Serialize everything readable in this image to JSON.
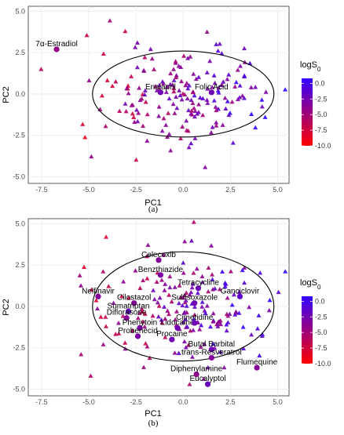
{
  "chart_data": [
    {
      "type": "scatter",
      "panel_label": "(a)",
      "xlabel": "PC1",
      "ylabel": "PC2",
      "xlim": [
        -8.2,
        5.6
      ],
      "ylim": [
        -5.4,
        5.3
      ],
      "x_ticks": [
        -7.5,
        -5.0,
        -2.5,
        0.0,
        2.5,
        5.0
      ],
      "x_tick_labels": [
        "-7.5",
        "-5.0",
        "-2.5",
        "0.0",
        "2.5",
        "5.0"
      ],
      "y_ticks": [
        -5.0,
        -2.5,
        0.0,
        2.5,
        5.0
      ],
      "y_tick_labels": [
        "-5.0",
        "-2.5",
        "0.0",
        "2.5",
        "5.0"
      ],
      "grid": true,
      "legend": {
        "title": "logS",
        "title_sub": "0",
        "ticks": [
          0.0,
          -2.5,
          -5.0,
          -7.5,
          -10.0
        ],
        "tick_labels": [
          "0.0",
          "-2.5",
          "-5.0",
          "-7.5",
          "-10.0"
        ],
        "position": "right",
        "color_low": "#ff0000",
        "color_high": "#3300ff"
      },
      "ellipse": {
        "center": [
          0.0,
          0.0
        ],
        "radius_x": 4.8,
        "radius_y": 2.6
      },
      "labeled_points": [
        {
          "label": "7α-Estradiol",
          "x": -6.7,
          "y": 2.7,
          "logS": -5.0
        },
        {
          "label": "Enalapril",
          "x": -1.2,
          "y": 0.1,
          "logS": -3.0
        },
        {
          "label": "Folic Acid",
          "x": 1.5,
          "y": 0.1,
          "logS": -3.0
        }
      ]
    },
    {
      "type": "scatter",
      "panel_label": "(b)",
      "xlabel": "PC1",
      "ylabel": "PC2",
      "xlim": [
        -8.2,
        5.6
      ],
      "ylim": [
        -5.4,
        5.3
      ],
      "x_ticks": [
        -7.5,
        -5.0,
        -2.5,
        0.0,
        2.5,
        5.0
      ],
      "x_tick_labels": [
        "-7.5",
        "-5.0",
        "-2.5",
        "0.0",
        "2.5",
        "5.0"
      ],
      "y_ticks": [
        -5.0,
        -2.5,
        0.0,
        2.5,
        5.0
      ],
      "y_tick_labels": [
        "-5.0",
        "-2.5",
        "0.0",
        "2.5",
        "5.0"
      ],
      "grid": true,
      "legend": {
        "title": "logS",
        "title_sub": "0",
        "ticks": [
          0.0,
          -2.5,
          -5.0,
          -7.5,
          -10.0
        ],
        "tick_labels": [
          "0.0",
          "-2.5",
          "-5.0",
          "-7.5",
          "-10.0"
        ],
        "position": "right",
        "color_low": "#ff0000",
        "color_high": "#3300ff"
      },
      "ellipse": {
        "center": [
          0.0,
          0.0
        ],
        "radius_x": 4.8,
        "radius_y": 3.3
      },
      "labeled_points": [
        {
          "label": "Celecoxib",
          "x": -1.3,
          "y": 2.8,
          "logS": -4.0
        },
        {
          "label": "Benzthiazide",
          "x": -1.2,
          "y": 1.9,
          "logS": -3.5
        },
        {
          "label": "Nelfinavir",
          "x": -4.5,
          "y": 0.6,
          "logS": -4.0
        },
        {
          "label": "Tetracycline",
          "x": 0.8,
          "y": 1.1,
          "logS": -3.0
        },
        {
          "label": "Ganciclovir",
          "x": 3.0,
          "y": 0.6,
          "logS": -2.0
        },
        {
          "label": "Cilostazol",
          "x": -2.6,
          "y": 0.2,
          "logS": -4.0
        },
        {
          "label": "Sulfisoxazole",
          "x": 0.6,
          "y": 0.2,
          "logS": -3.0
        },
        {
          "label": "Sumatriptan",
          "x": -2.9,
          "y": -0.3,
          "logS": -2.5
        },
        {
          "label": "Diflorasone",
          "x": -3.0,
          "y": -0.7,
          "logS": -4.0
        },
        {
          "label": "Phenytoin",
          "x": -2.3,
          "y": -1.3,
          "logS": -3.5
        },
        {
          "label": "Probenecid",
          "x": -2.4,
          "y": -1.8,
          "logS": -3.5
        },
        {
          "label": "Lidocaine",
          "x": -0.3,
          "y": -1.3,
          "logS": -3.0
        },
        {
          "label": "Cimetidine",
          "x": 0.6,
          "y": -1.0,
          "logS": -3.0
        },
        {
          "label": "Procaine",
          "x": -0.6,
          "y": -2.0,
          "logS": -3.0
        },
        {
          "label": "Butal Barbital",
          "x": 1.5,
          "y": -2.6,
          "logS": -3.0
        },
        {
          "label": "trans-Resveratrol",
          "x": 1.5,
          "y": -3.1,
          "logS": -4.0
        },
        {
          "label": "Flumequine",
          "x": 3.9,
          "y": -3.7,
          "logS": -4.0
        },
        {
          "label": "Diphenylamine",
          "x": 0.7,
          "y": -4.1,
          "logS": -4.5
        },
        {
          "label": "Eucalyptol",
          "x": 1.3,
          "y": -4.7,
          "logS": -2.5
        }
      ]
    }
  ]
}
